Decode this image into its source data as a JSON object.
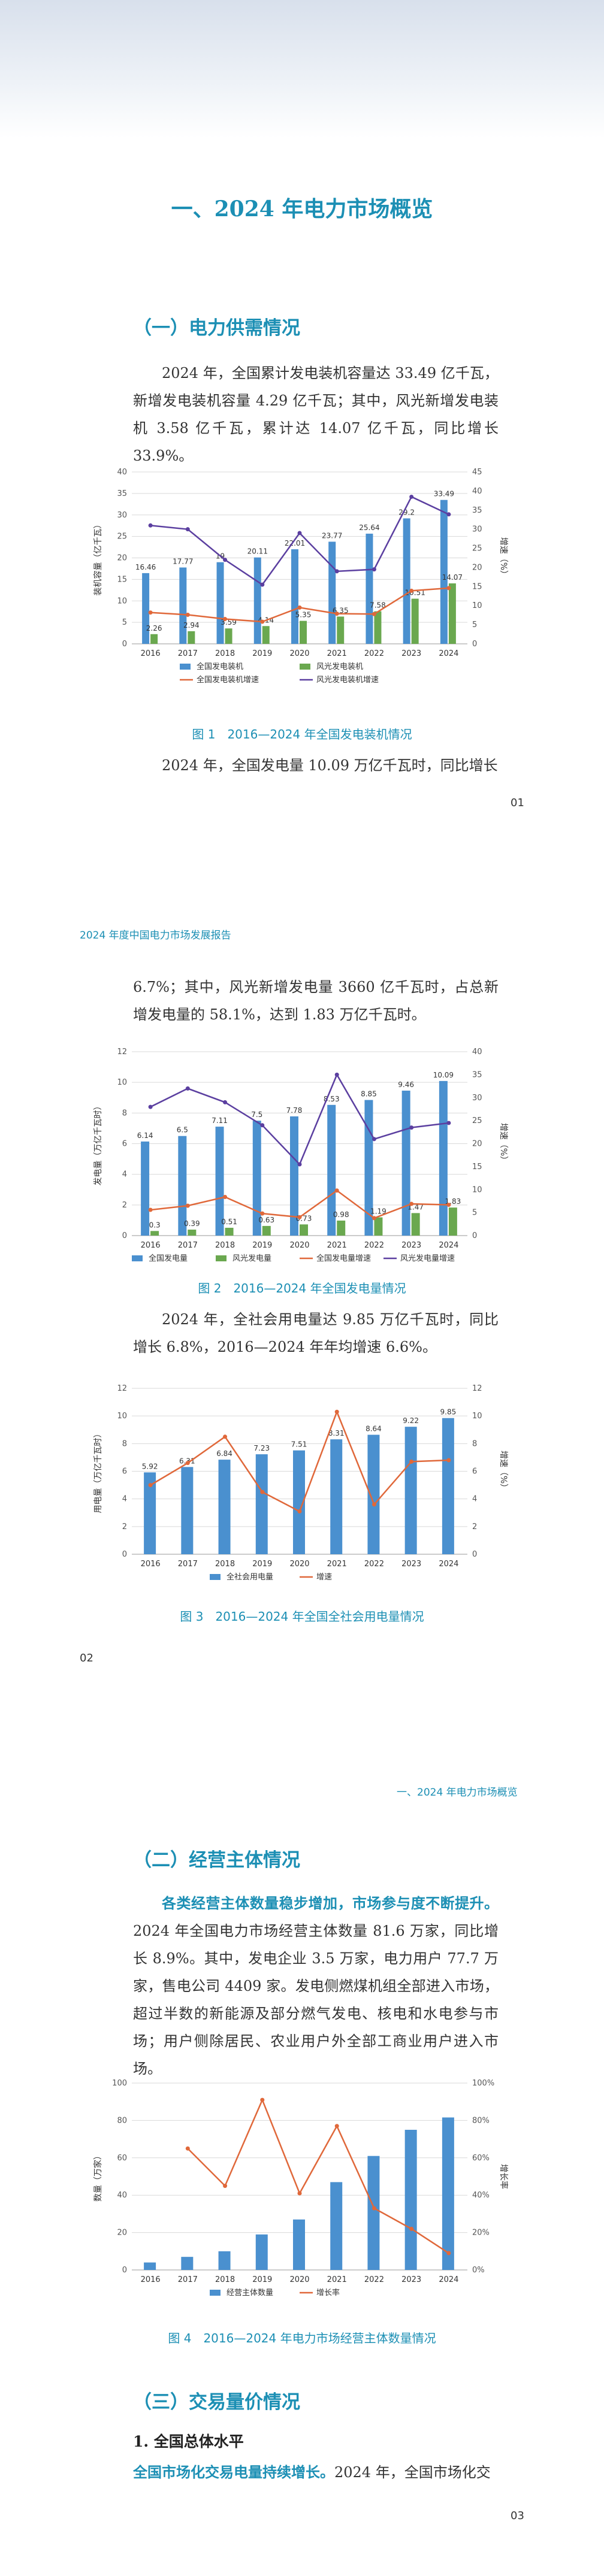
{
  "page1": {
    "title": "一、2024 年电力市场概览",
    "section1": "（一）电力供需情况",
    "para1": "2024 年，全国累计发电装机容量达 33.49 亿千瓦，新增发电装机容量 4.29 亿千瓦；其中，风光新增发电装机 3.58 亿千瓦，累计达 14.07 亿千瓦，同比增长 33.9%。",
    "fig1_caption": "图 1　2016—2024 年全国发电装机情况",
    "para2": "2024 年，全国发电量 10.09 万亿千瓦时，同比增长",
    "page_no": "01"
  },
  "page2": {
    "running_head": "2024 年度中国电力市场发展报告",
    "para1": "6.7%；其中，风光新增发电量 3660 亿千瓦时，占总新增发电量的 58.1%，达到 1.83 万亿千瓦时。",
    "fig2_caption": "图 2　2016—2024 年全国发电量情况",
    "para2": "2024 年，全社会用电量达 9.85 万亿千瓦时，同比增长 6.8%，2016—2024 年年均增速 6.6%。",
    "fig3_caption": "图 3　2016—2024 年全国全社会用电量情况",
    "page_no": "02"
  },
  "page3": {
    "running_head": "一、2024 年电力市场概览",
    "section2": "（二）经营主体情况",
    "para1_hl": "各类经营主体数量稳步增加，市场参与度不断提升。",
    "para1": "2024 年全国电力市场经营主体数量 81.6 万家，同比增长 8.9%。其中，发电企业 3.5 万家，电力用户 77.7 万家，售电公司 4409 家。发电侧燃煤机组全部进入市场，超过半数的新能源及部分燃气发电、核电和水电参与市场；用户侧除居民、农业用户外全部工商业用户进入市场。",
    "fig4_caption": "图 4　2016—2024 年电力市场经营主体数量情况",
    "section3": "（三）交易量价情况",
    "sub1": "1. 全国总体水平",
    "para2_hl": "全国市场化交易电量持续增长。",
    "para2": "2024 年，全国市场化交",
    "page_no": "03"
  },
  "chart_data": [
    {
      "type": "bar",
      "categories": [
        "2016",
        "2017",
        "2018",
        "2019",
        "2020",
        "2021",
        "2022",
        "2023",
        "2024"
      ],
      "ylabel": "装机容量（亿千瓦）",
      "y2label": "增速（%）",
      "ylim": [
        0,
        40
      ],
      "y2lim": [
        0,
        45
      ],
      "series": [
        {
          "name": "全国发电装机",
          "kind": "bar",
          "axis": "left",
          "color": "#4a90cf",
          "values": [
            16.46,
            17.77,
            19.0,
            20.11,
            22.01,
            23.77,
            25.64,
            29.2,
            33.49
          ]
        },
        {
          "name": "风光发电装机",
          "kind": "bar",
          "axis": "left",
          "color": "#6aa84f",
          "values": [
            2.26,
            2.94,
            3.59,
            4.14,
            5.35,
            6.35,
            7.58,
            10.51,
            14.07
          ]
        },
        {
          "name": "全国发电装机增速",
          "kind": "line",
          "axis": "right",
          "color": "#e0683a",
          "values": [
            8.2,
            7.6,
            6.5,
            5.8,
            9.5,
            7.9,
            7.8,
            13.9,
            14.6
          ]
        },
        {
          "name": "风光发电装机增速",
          "kind": "line",
          "axis": "right",
          "color": "#5b3fa0",
          "values": [
            31.0,
            30.0,
            22.0,
            15.5,
            29.0,
            19.0,
            19.5,
            38.5,
            33.9
          ]
        }
      ]
    },
    {
      "type": "bar",
      "categories": [
        "2016",
        "2017",
        "2018",
        "2019",
        "2020",
        "2021",
        "2022",
        "2023",
        "2024"
      ],
      "ylabel": "发电量（万亿千瓦时）",
      "y2label": "增速（%）",
      "ylim": [
        0,
        12
      ],
      "y2lim": [
        0,
        40
      ],
      "series": [
        {
          "name": "全国发电量",
          "kind": "bar",
          "axis": "left",
          "color": "#4a90cf",
          "values": [
            6.14,
            6.5,
            7.11,
            7.5,
            7.78,
            8.53,
            8.85,
            9.46,
            10.09
          ]
        },
        {
          "name": "风光发电量",
          "kind": "bar",
          "axis": "left",
          "color": "#6aa84f",
          "values": [
            0.3,
            0.39,
            0.51,
            0.63,
            0.73,
            0.98,
            1.19,
            1.47,
            1.83
          ]
        },
        {
          "name": "全国发电量增速",
          "kind": "line",
          "axis": "right",
          "color": "#e0683a",
          "values": [
            5.6,
            6.5,
            8.4,
            4.8,
            4.0,
            9.8,
            3.8,
            6.9,
            6.7
          ]
        },
        {
          "name": "风光发电量增速",
          "kind": "line",
          "axis": "right",
          "color": "#5b3fa0",
          "values": [
            28.0,
            32.0,
            29.0,
            24.0,
            15.5,
            35.0,
            21.0,
            23.5,
            24.5
          ]
        }
      ]
    },
    {
      "type": "bar",
      "categories": [
        "2016",
        "2017",
        "2018",
        "2019",
        "2020",
        "2021",
        "2022",
        "2023",
        "2024"
      ],
      "ylabel": "用电量（万亿千瓦时）",
      "y2label": "增速（%）",
      "ylim": [
        0,
        12
      ],
      "y2lim": [
        0,
        12
      ],
      "series": [
        {
          "name": "全社会用电量",
          "kind": "bar",
          "axis": "left",
          "color": "#4a90cf",
          "values": [
            5.92,
            6.31,
            6.84,
            7.23,
            7.51,
            8.31,
            8.64,
            9.22,
            9.85
          ]
        },
        {
          "name": "增速",
          "kind": "line",
          "axis": "right",
          "color": "#e0683a",
          "values": [
            5.0,
            6.6,
            8.5,
            4.5,
            3.1,
            10.3,
            3.6,
            6.7,
            6.8
          ]
        }
      ]
    },
    {
      "type": "bar",
      "categories": [
        "2016",
        "2017",
        "2018",
        "2019",
        "2020",
        "2021",
        "2022",
        "2023",
        "2024"
      ],
      "ylabel": "数量（万家）",
      "y2label": "增长率",
      "ylim": [
        0,
        100
      ],
      "y2lim": [
        0,
        100
      ],
      "y2_suffix": "%",
      "series": [
        {
          "name": "经营主体数量",
          "kind": "bar",
          "axis": "left",
          "color": "#4a90cf",
          "values": [
            4,
            7,
            10,
            19,
            27,
            47,
            61,
            75,
            81.6
          ]
        },
        {
          "name": "增长率",
          "kind": "line",
          "axis": "right",
          "color": "#e0683a",
          "values": [
            null,
            65,
            45,
            91,
            41,
            77,
            33,
            22,
            9
          ]
        }
      ]
    }
  ]
}
